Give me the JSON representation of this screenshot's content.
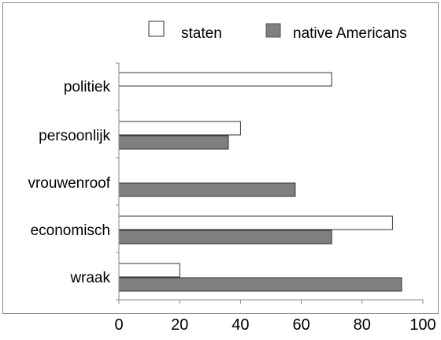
{
  "chart_data": {
    "type": "bar",
    "orientation": "horizontal",
    "categories": [
      "politiek",
      "persoonlijk",
      "vrouwenroof",
      "economisch",
      "wraak"
    ],
    "series": [
      {
        "name": "staten",
        "values": [
          70,
          40,
          null,
          90,
          20
        ],
        "color": "#ffffff"
      },
      {
        "name": "native Americans",
        "values": [
          null,
          36,
          58,
          70,
          93
        ],
        "color": "#7f7f7f"
      }
    ],
    "xticks": [
      "0",
      "20",
      "40",
      "60",
      "80",
      "100"
    ],
    "xlim": [
      0,
      100
    ],
    "grid": false,
    "legend_position": "top"
  }
}
